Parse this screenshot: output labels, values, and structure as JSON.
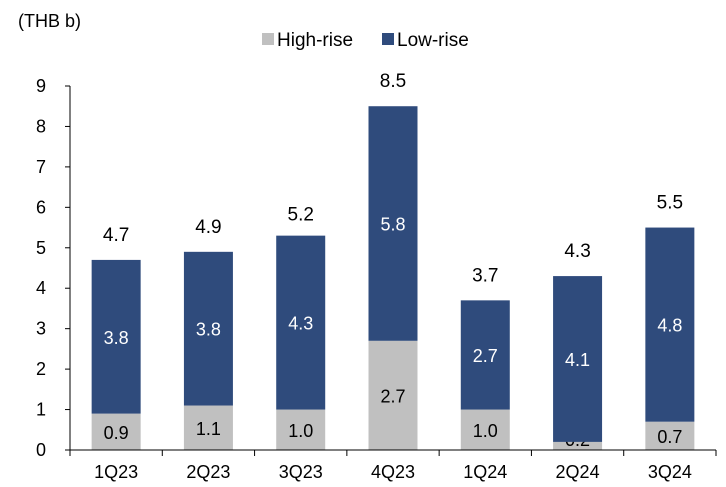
{
  "chart_data": {
    "type": "bar",
    "stacked": true,
    "unit_label": "(THB b)",
    "categories": [
      "1Q23",
      "2Q23",
      "3Q23",
      "4Q23",
      "1Q24",
      "2Q24",
      "3Q24"
    ],
    "series": [
      {
        "name": "High-rise",
        "color": "#c0c0c0",
        "values": [
          0.9,
          1.1,
          1.0,
          2.7,
          1.0,
          0.2,
          0.7
        ],
        "labels": [
          "0.9",
          "1.1",
          "1.0",
          "2.7",
          "1.0",
          "0.2",
          "0.7"
        ],
        "label_color": "#000000"
      },
      {
        "name": "Low-rise",
        "color": "#2f4b7c",
        "values": [
          3.8,
          3.8,
          4.3,
          5.8,
          2.7,
          4.1,
          4.8
        ],
        "labels": [
          "3.8",
          "3.8",
          "4.3",
          "5.8",
          "2.7",
          "4.1",
          "4.8"
        ],
        "label_color": "#ffffff"
      }
    ],
    "totals": [
      4.7,
      4.9,
      5.2,
      8.5,
      3.7,
      4.3,
      5.5
    ],
    "total_labels": [
      "4.7",
      "4.9",
      "5.2",
      "8.5",
      "3.7",
      "4.3",
      "5.5"
    ],
    "ylim": [
      0,
      9
    ],
    "yticks": [
      "0",
      "1",
      "2",
      "3",
      "4",
      "5",
      "6",
      "7",
      "8",
      "9"
    ],
    "grid": false,
    "legend_position": "top-center"
  }
}
